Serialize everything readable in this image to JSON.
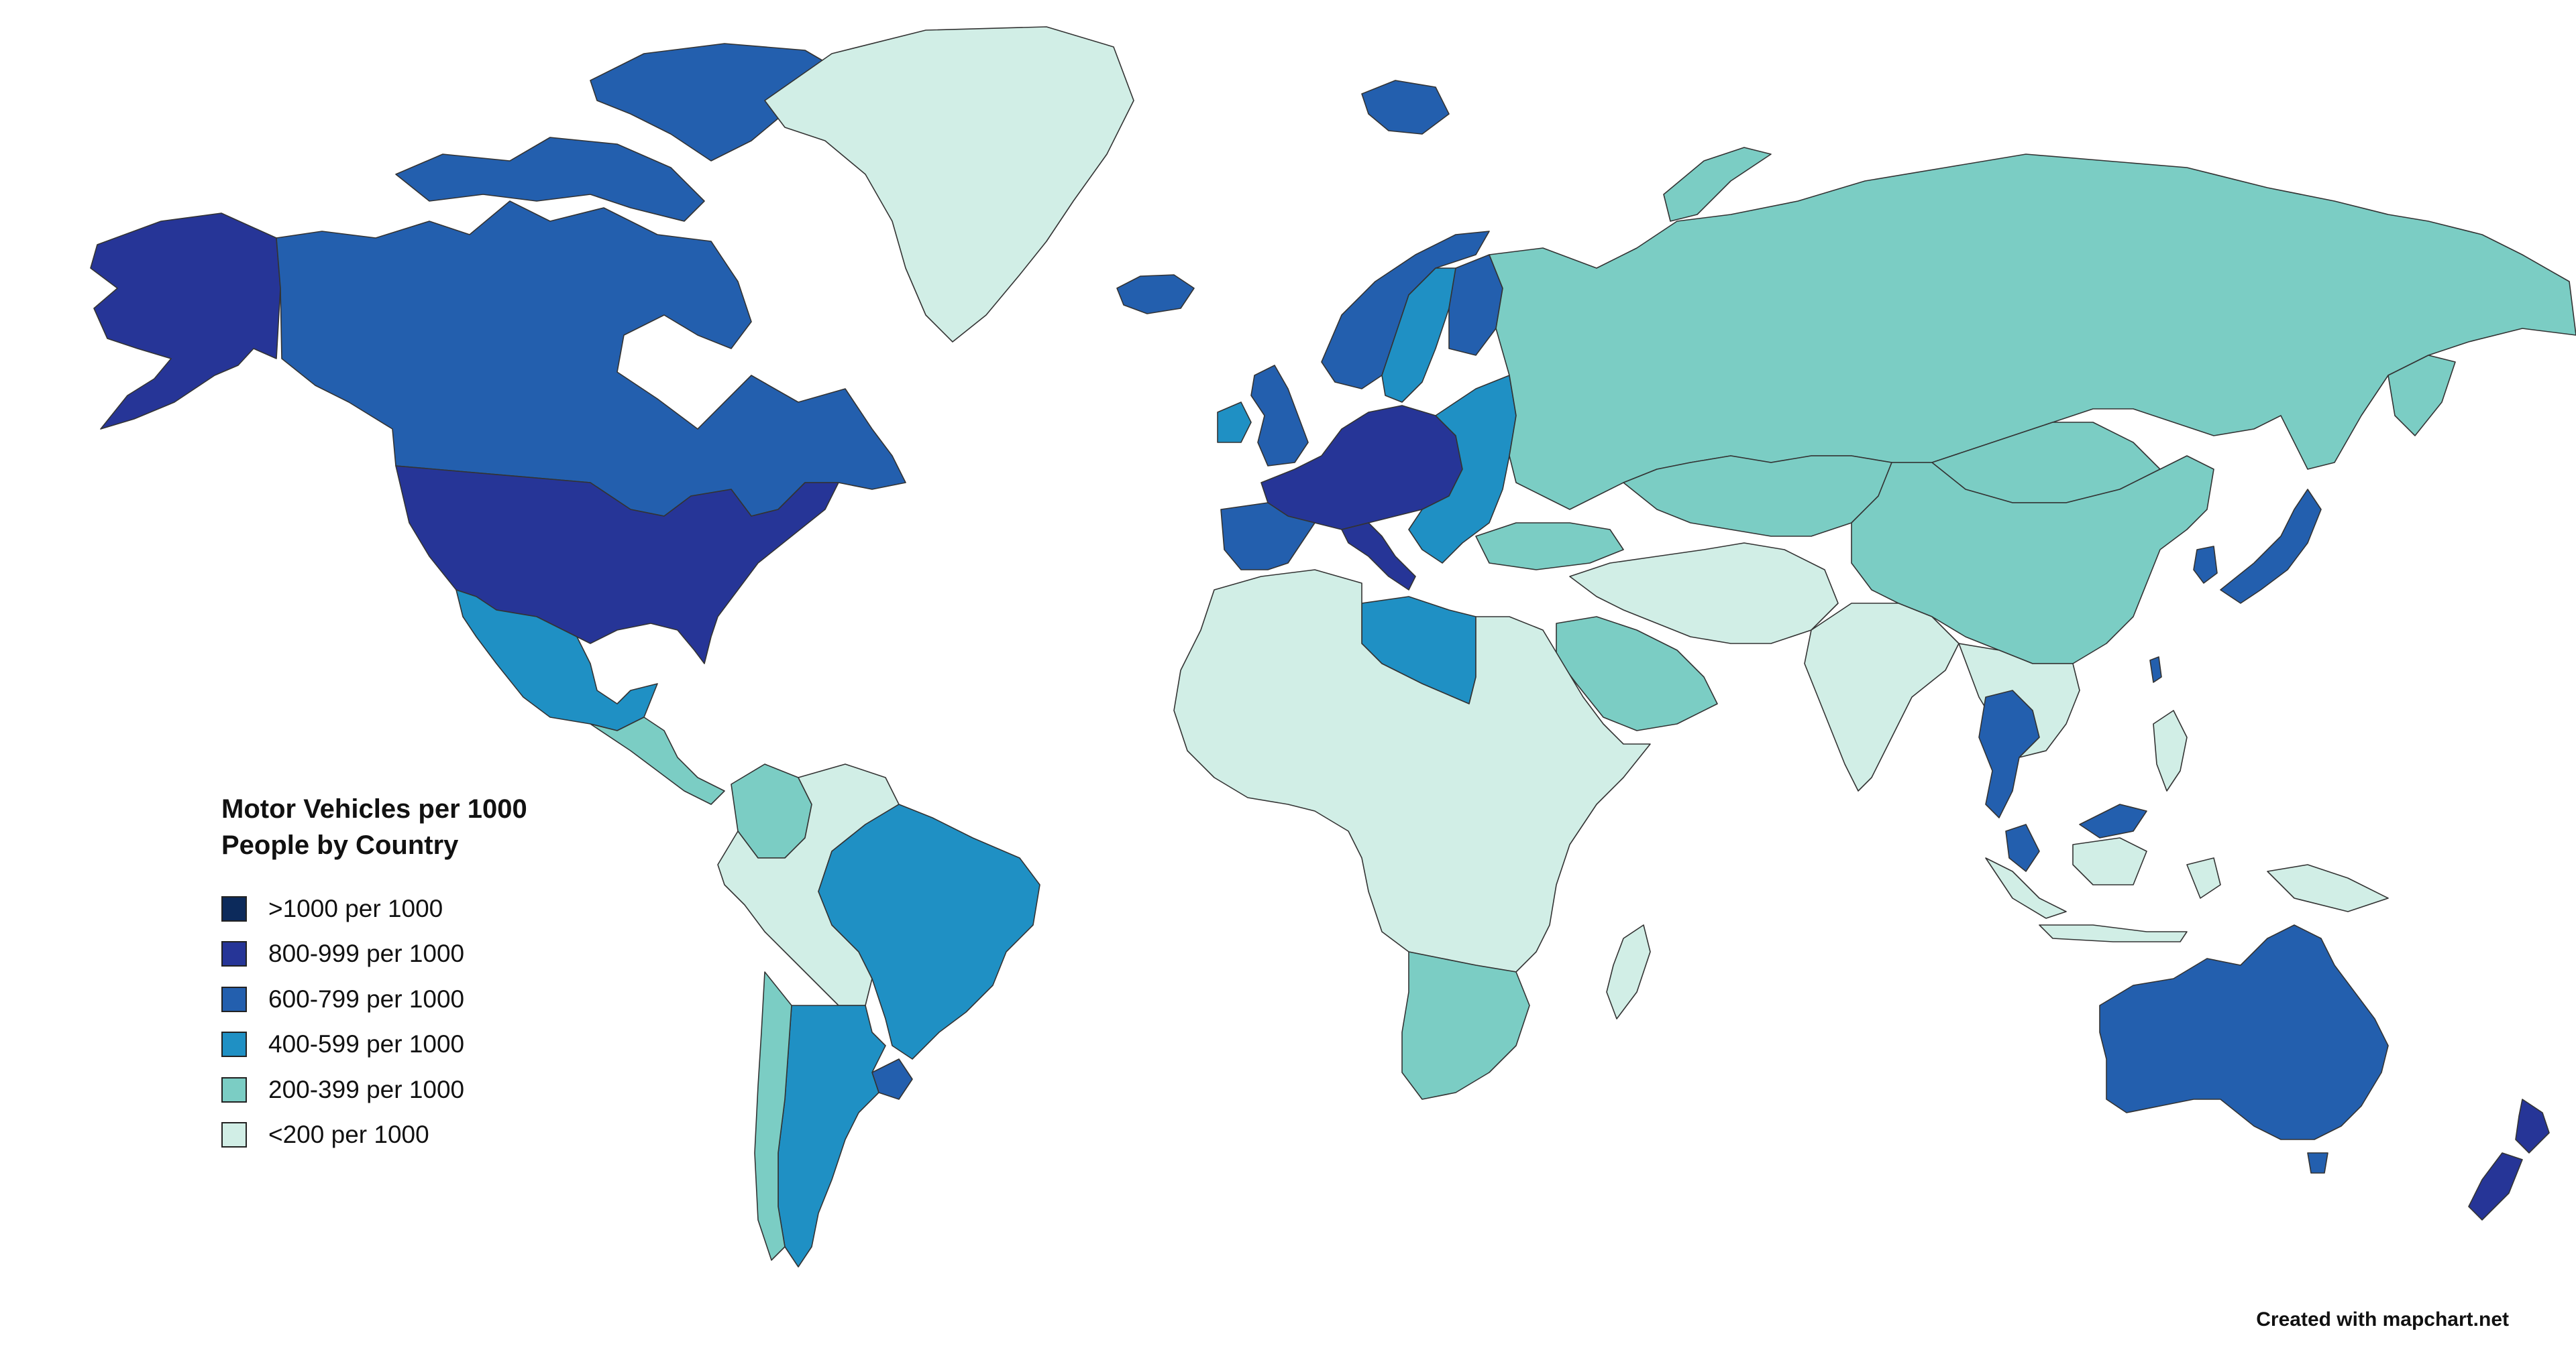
{
  "legend": {
    "title_line1": "Motor Vehicles per 1000",
    "title_line2": "People by Country",
    "items": [
      {
        "label": ">1000 per 1000",
        "color": "#0c2a5b"
      },
      {
        "label": "800-999 per 1000",
        "color": "#263597"
      },
      {
        "label": "600-799 per 1000",
        "color": "#235fae"
      },
      {
        "label": "400-599 per 1000",
        "color": "#1f90c4"
      },
      {
        "label": "200-399 per 1000",
        "color": "#7bcdc4"
      },
      {
        "label": "<200 per 1000",
        "color": "#d1eee6"
      }
    ]
  },
  "credit": "Created with mapchart.net",
  "countries": [
    {
      "name": "Alaska (USA)",
      "class": "800-999"
    },
    {
      "name": "Canada",
      "class": "600-799"
    },
    {
      "name": "Greenland",
      "class": "<200"
    },
    {
      "name": "United States",
      "class": "800-999"
    },
    {
      "name": "Mexico",
      "class": "400-599"
    },
    {
      "name": "Central America",
      "class": "200-399"
    },
    {
      "name": "Colombia",
      "class": "200-399"
    },
    {
      "name": "Brazil",
      "class": "400-599"
    },
    {
      "name": "Argentina",
      "class": "400-599"
    },
    {
      "name": "Chile",
      "class": "200-399"
    },
    {
      "name": "Uruguay",
      "class": "600-799"
    },
    {
      "name": "Western South America",
      "class": "<200"
    },
    {
      "name": "Iceland",
      "class": "600-799"
    },
    {
      "name": "Norway",
      "class": "600-799"
    },
    {
      "name": "Sweden",
      "class": "400-599"
    },
    {
      "name": "Finland",
      "class": "600-799"
    },
    {
      "name": "United Kingdom",
      "class": "600-799"
    },
    {
      "name": "Ireland",
      "class": "400-599"
    },
    {
      "name": "Western Europe",
      "class": "800-999"
    },
    {
      "name": "Iberia",
      "class": "600-799"
    },
    {
      "name": "Italy",
      "class": "800-999"
    },
    {
      "name": "Eastern Europe",
      "class": "400-599"
    },
    {
      "name": "Russia",
      "class": "200-399"
    },
    {
      "name": "Kazakhstan and Central Asia",
      "class": "200-399"
    },
    {
      "name": "China",
      "class": "200-399"
    },
    {
      "name": "Mongolia",
      "class": "200-399"
    },
    {
      "name": "Japan",
      "class": "600-799"
    },
    {
      "name": "South Korea",
      "class": "600-799"
    },
    {
      "name": "Turkey",
      "class": "200-399"
    },
    {
      "name": "Saudi Arabia",
      "class": "200-399"
    },
    {
      "name": "Middle East",
      "class": "<200"
    },
    {
      "name": "India",
      "class": "<200"
    },
    {
      "name": "Thailand",
      "class": "600-799"
    },
    {
      "name": "Malaysia",
      "class": "600-799"
    },
    {
      "name": "Southeast Asia",
      "class": "<200"
    },
    {
      "name": "Indonesia",
      "class": "<200"
    },
    {
      "name": "Libya",
      "class": "400-599"
    },
    {
      "name": "Africa",
      "class": "<200"
    },
    {
      "name": "Southern Africa",
      "class": "200-399"
    },
    {
      "name": "Madagascar",
      "class": "<200"
    },
    {
      "name": "Australia",
      "class": "600-799"
    },
    {
      "name": "New Zealand",
      "class": "800-999"
    },
    {
      "name": "Svalbard",
      "class": "600-799"
    },
    {
      "name": "Novaya Zemlya",
      "class": "200-399"
    },
    {
      "name": "Taiwan",
      "class": "600-799"
    }
  ]
}
